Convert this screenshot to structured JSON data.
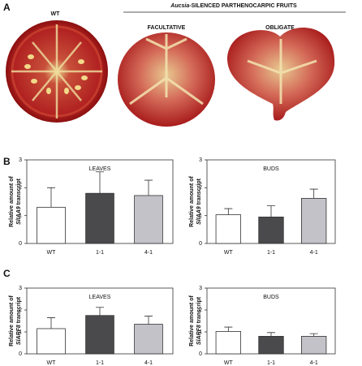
{
  "figure": {
    "panel_labels": [
      "A",
      "B",
      "C"
    ],
    "wt_label": "WT",
    "group_title_italic": "Aucsia",
    "group_title_rest": "-SILENCED PARTHENOCARPIC FRUITS",
    "facultative": "FACULTATIVE",
    "obligate": "OBLIGATE"
  },
  "chart_data": [
    {
      "type": "bar",
      "title": "LEAVES",
      "y_label": [
        "Relative amount of",
        "SlIAA9",
        "transcript"
      ],
      "categories": [
        "WT",
        "1-1",
        "4-1"
      ],
      "colors": [
        "#ffffff",
        "#4a4a4c",
        "#c2c2c8"
      ],
      "values": [
        1.3,
        1.8,
        1.72
      ],
      "errors": [
        0.7,
        0.77,
        0.55
      ],
      "ylim": [
        0,
        3
      ],
      "yticks": [
        0,
        1,
        2,
        3
      ]
    },
    {
      "type": "bar",
      "title": "BUDS",
      "y_label": [
        "Relative amount of",
        "SlIAA9",
        "transcript"
      ],
      "categories": [
        "WT",
        "1-1",
        "4-1"
      ],
      "colors": [
        "#ffffff",
        "#4a4a4c",
        "#c2c2c8"
      ],
      "values": [
        1.03,
        0.95,
        1.62
      ],
      "errors": [
        0.22,
        0.4,
        0.33
      ],
      "ylim": [
        0,
        3
      ],
      "yticks": [
        0,
        1,
        2,
        3
      ]
    },
    {
      "type": "bar",
      "title": "LEAVES",
      "y_label": [
        "Relative amount of",
        "SlARF8",
        "transcript"
      ],
      "categories": [
        "WT",
        "1-1",
        "4-1"
      ],
      "colors": [
        "#ffffff",
        "#4a4a4c",
        "#c2c2c8"
      ],
      "values": [
        1.15,
        1.75,
        1.35
      ],
      "errors": [
        0.5,
        0.37,
        0.37
      ],
      "ylim": [
        0,
        3
      ],
      "yticks": [
        0,
        1,
        2,
        3
      ]
    },
    {
      "type": "bar",
      "title": "BUDS",
      "y_label": [
        "Relative amount of",
        "SlARF8",
        "transcript"
      ],
      "categories": [
        "WT",
        "1-1",
        "4-1"
      ],
      "colors": [
        "#ffffff",
        "#4a4a4c",
        "#c2c2c8"
      ],
      "values": [
        1.02,
        0.8,
        0.8
      ],
      "errors": [
        0.2,
        0.17,
        0.12
      ],
      "ylim": [
        0,
        3
      ],
      "yticks": [
        0,
        1,
        2,
        3
      ]
    }
  ]
}
